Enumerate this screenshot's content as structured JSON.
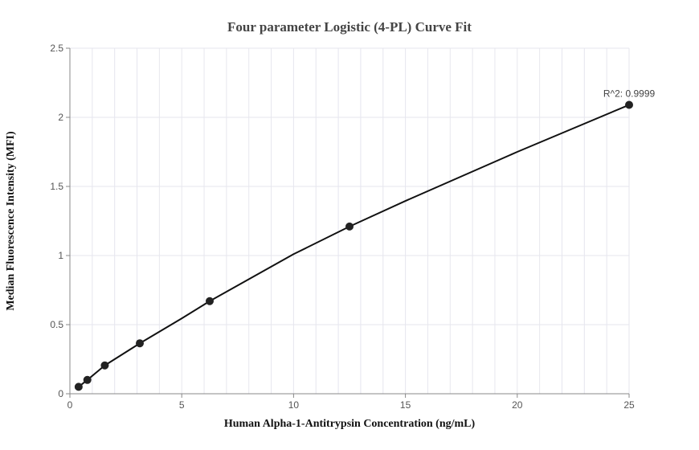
{
  "chart_data": {
    "type": "scatter",
    "title": "Four parameter Logistic (4-PL) Curve Fit",
    "xlabel": "Human Alpha-1-Antitrypsin Concentration (ng/mL)",
    "ylabel": "Median Fluorescence Intensity (MFI)",
    "xlim": [
      0,
      25
    ],
    "ylim": [
      0,
      2.5
    ],
    "x_ticks": [
      "0",
      "5",
      "10",
      "15",
      "20",
      "25"
    ],
    "y_ticks": [
      "0",
      "0.5",
      "1",
      "1.5",
      "2",
      "2.5"
    ],
    "grid": true,
    "series": [
      {
        "points_x": [
          0.39,
          0.78,
          1.56,
          3.125,
          6.25,
          12.5,
          25
        ],
        "points_y": [
          0.05,
          0.1,
          0.205,
          0.365,
          0.67,
          1.21,
          2.09
        ]
      }
    ],
    "fit_curve": {
      "x": [
        0.39,
        0.78,
        1.56,
        3.125,
        5,
        6.25,
        10,
        12.5,
        15,
        20,
        25
      ],
      "y": [
        0.05,
        0.1,
        0.205,
        0.365,
        0.545,
        0.67,
        1.01,
        1.21,
        1.395,
        1.75,
        2.09
      ]
    },
    "annotation": "R^2: 0.9999",
    "colors": {
      "curve": "#111111",
      "points": "#222222",
      "grid": "#e6e6ee",
      "axis": "#888888"
    }
  }
}
